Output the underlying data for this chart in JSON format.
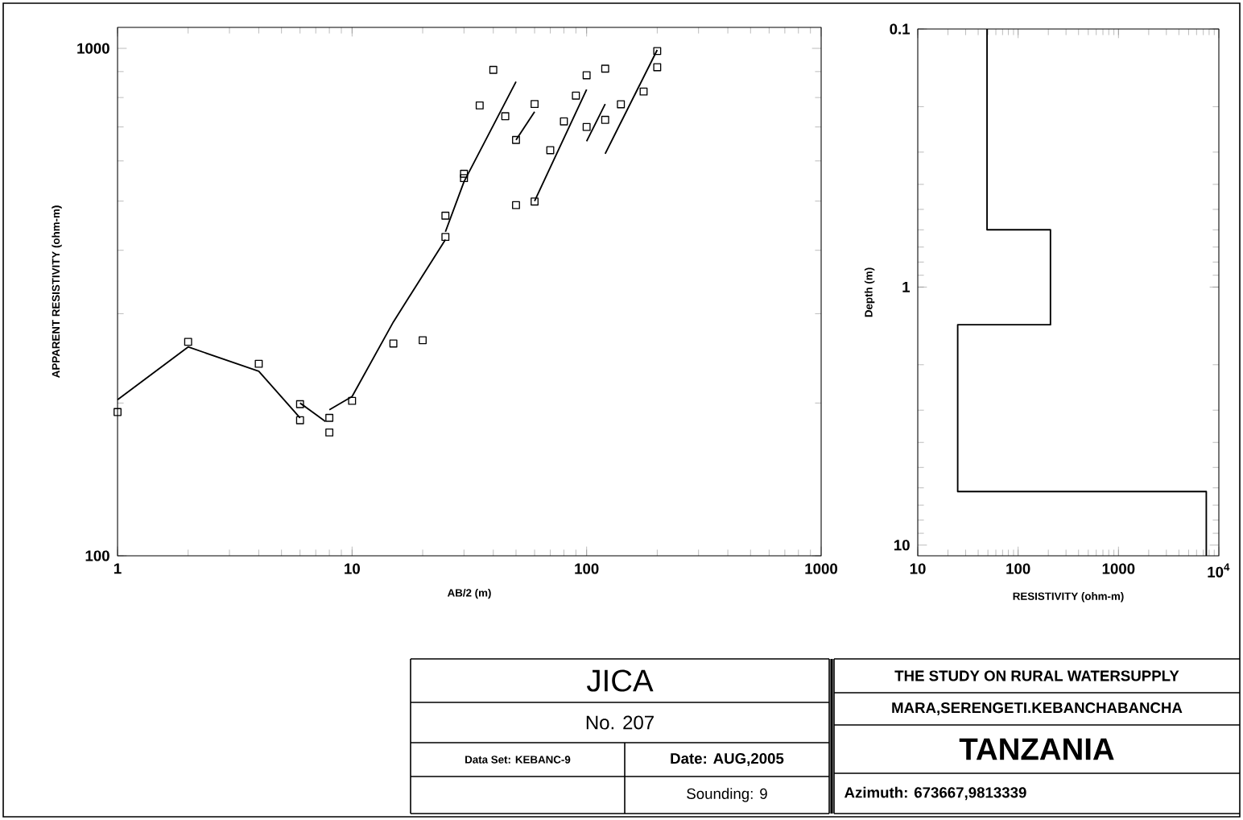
{
  "chart_data": [
    {
      "type": "scatter",
      "xlabel": "AB/2 (m)",
      "ylabel": "APPARENT RESISTIVITY (ohm-m)",
      "log": "xy",
      "xlim": [
        1,
        1000
      ],
      "ylim": [
        100,
        1100
      ],
      "xticks": [
        1,
        10,
        100,
        1000
      ],
      "yticks": [
        100,
        1000
      ],
      "series": [
        {
          "color": "#000000",
          "marker": "square",
          "x": [
            1,
            2,
            4,
            6,
            6,
            8,
            8,
            10,
            15,
            20,
            25,
            25,
            30,
            30,
            35,
            40,
            45,
            50,
            50,
            60,
            60,
            70,
            80,
            90,
            100,
            100,
            120,
            120,
            140,
            175,
            200,
            200
          ],
          "values": [
            192,
            264,
            239,
            199,
            185,
            187,
            175,
            202,
            262,
            266,
            468,
            425,
            566,
            555,
            772,
            907,
            735,
            660,
            491,
            777,
            499,
            630,
            718,
            807,
            885,
            700,
            912,
            723,
            776,
            822,
            988,
            918
          ]
        },
        {
          "type": "line",
          "color": "#000000",
          "marker": "none",
          "x": [
            1,
            2,
            4,
            6
          ],
          "values": [
            203,
            258,
            231,
            187
          ]
        },
        {
          "type": "line",
          "color": "#000000",
          "marker": "none",
          "x": [
            6,
            7.7
          ],
          "values": [
            200,
            184
          ]
        },
        {
          "type": "line",
          "color": "#000000",
          "marker": "none",
          "x": [
            8,
            10,
            15,
            25
          ],
          "values": [
            194,
            206,
            289,
            420
          ]
        },
        {
          "type": "line",
          "color": "#000000",
          "marker": "none",
          "x": [
            25,
            30,
            50
          ],
          "values": [
            435,
            546,
            860
          ]
        },
        {
          "type": "line",
          "color": "#000000",
          "marker": "none",
          "x": [
            50,
            60
          ],
          "values": [
            660,
            750
          ]
        },
        {
          "type": "line",
          "color": "#000000",
          "marker": "none",
          "x": [
            60,
            100
          ],
          "values": [
            500,
            830
          ]
        },
        {
          "type": "line",
          "color": "#000000",
          "marker": "none",
          "x": [
            100,
            120
          ],
          "values": [
            656,
            777
          ]
        },
        {
          "type": "line",
          "color": "#000000",
          "marker": "none",
          "x": [
            120,
            200
          ],
          "values": [
            620,
            993
          ]
        }
      ],
      "annotations": [
        "JICA",
        "No. 207",
        "Data Set: KEBANC-9",
        "Date: AUG,2005",
        "Sounding: 9",
        "THE STUDY ON RURAL WATERSUPPLY",
        "MARA,SERENGETI.KEBANCHABANCHA",
        "TANZANIA",
        "Azimuth: 673667,9813339"
      ]
    },
    {
      "type": "line",
      "xlabel": "RESISTIVITY (ohm-m)",
      "ylabel": "Depth (m)",
      "log": "xy",
      "xlim": [
        10,
        10000
      ],
      "ylim": [
        11,
        0.1
      ],
      "xticks": [
        10,
        100,
        1000,
        {
          "value": 10000,
          "label": "10$^{4}$"
        }
      ],
      "yticks": [
        0.1,
        1,
        10
      ],
      "series": [
        {
          "color": "#000000",
          "marker": "none",
          "x": [
            49,
            49,
            210,
            210,
            25,
            25,
            7500,
            7500
          ],
          "values": [
            0.1,
            0.6,
            0.6,
            1.4,
            1.4,
            6.2,
            6.2,
            11
          ]
        }
      ]
    }
  ]
}
